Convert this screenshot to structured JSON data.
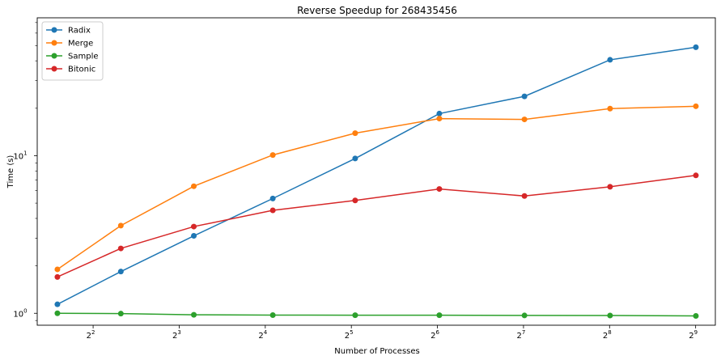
{
  "chart_data": {
    "type": "line",
    "title": "Reverse Speedup for 268435456",
    "xlabel": "Number of Processes",
    "ylabel": "Time (s)",
    "xscale": "log2",
    "yscale": "log10",
    "x": [
      3,
      5,
      9,
      17,
      33,
      65,
      129,
      257,
      513
    ],
    "x_ticks": [
      {
        "value": 4,
        "base": "2",
        "exp": "2"
      },
      {
        "value": 8,
        "base": "2",
        "exp": "3"
      },
      {
        "value": 16,
        "base": "2",
        "exp": "4"
      },
      {
        "value": 32,
        "base": "2",
        "exp": "5"
      },
      {
        "value": 64,
        "base": "2",
        "exp": "6"
      },
      {
        "value": 128,
        "base": "2",
        "exp": "7"
      },
      {
        "value": 256,
        "base": "2",
        "exp": "8"
      },
      {
        "value": 512,
        "base": "2",
        "exp": "9"
      }
    ],
    "y_ticks": [
      {
        "value": 1,
        "base": "10",
        "exp": "0"
      },
      {
        "value": 10,
        "base": "10",
        "exp": "1"
      }
    ],
    "xlim": [
      2.55,
      600
    ],
    "ylim": [
      0.84,
      75
    ],
    "grid": false,
    "legend_position": "top-left",
    "series": [
      {
        "name": "Radix",
        "color": "#1f77b4",
        "values": [
          1.14,
          1.84,
          3.1,
          5.35,
          9.6,
          18.5,
          23.8,
          40.6,
          48.8
        ]
      },
      {
        "name": "Merge",
        "color": "#ff7f0e",
        "values": [
          1.9,
          3.6,
          6.4,
          10.1,
          13.9,
          17.2,
          17.0,
          19.9,
          20.6
        ]
      },
      {
        "name": "Sample",
        "color": "#2ca02c",
        "values": [
          1.0,
          0.995,
          0.978,
          0.974,
          0.972,
          0.972,
          0.969,
          0.968,
          0.962
        ]
      },
      {
        "name": "Bitonic",
        "color": "#d62728",
        "values": [
          1.7,
          2.58,
          3.55,
          4.5,
          5.2,
          6.15,
          5.55,
          6.35,
          7.5
        ]
      }
    ]
  }
}
